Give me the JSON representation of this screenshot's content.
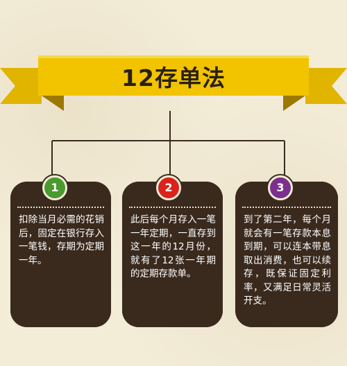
{
  "title": "12存单法",
  "colors": {
    "banner": "#f2c400",
    "banner_dark": "#c99d00",
    "card": "#3a2a1e",
    "connector": "#3a2a1e",
    "step1": "#4a9a2e",
    "step2": "#d9241b",
    "step3": "#7c2f8c"
  },
  "steps": [
    {
      "number": "1",
      "text": "扣除当月必需的花销后，固定在银行存入一笔钱，存期为定期一年。"
    },
    {
      "number": "2",
      "text": "此后每个月存入一笔一年定期，一直存到这一年的12月份，就有了12张一年期的定期存款单。"
    },
    {
      "number": "3",
      "text": "到了第二年，每个月就会有一笔存款本息到期，可以连本带息取出消费，也可以续存，既保证固定利率，又满足日常灵活开支。"
    }
  ]
}
